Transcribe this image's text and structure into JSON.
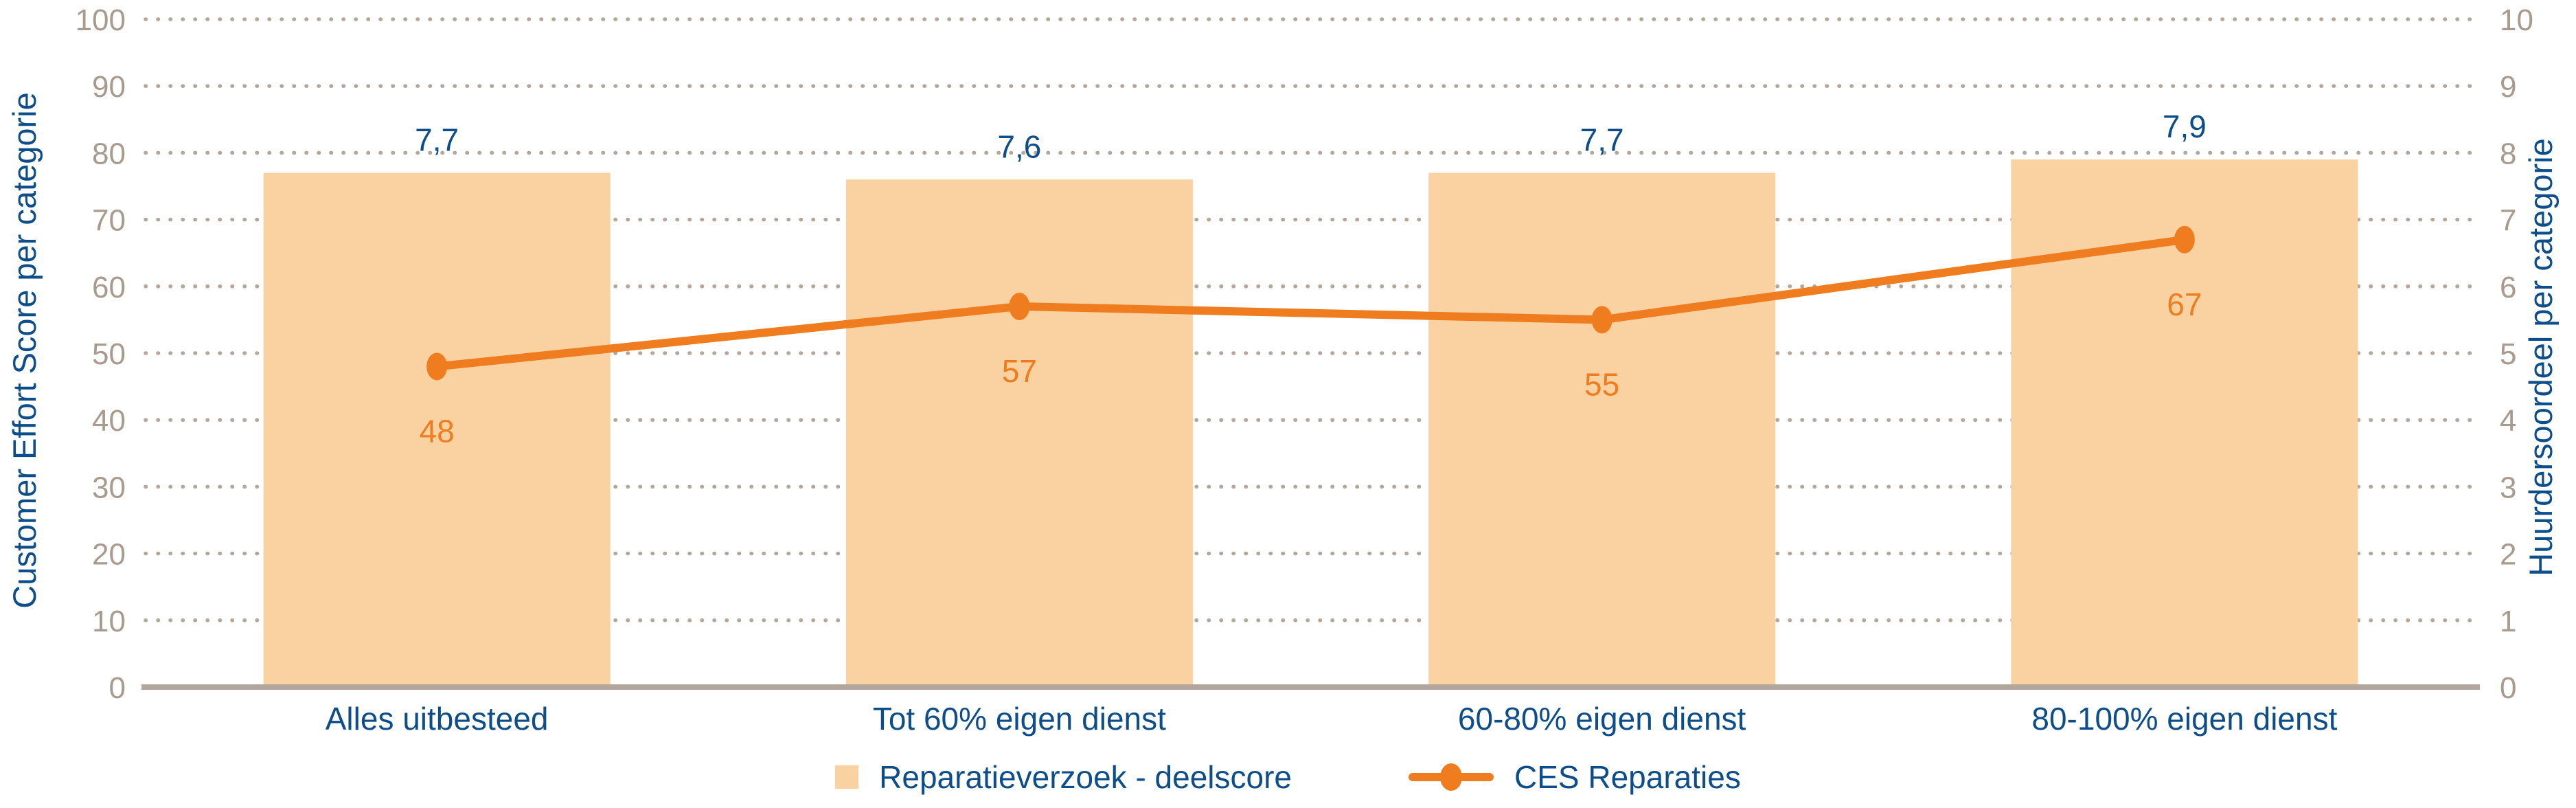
{
  "chart_data": {
    "type": "bar",
    "subtype": "combo-bar-line",
    "categories": [
      "Alles uitbesteed",
      "Tot 60% eigen dienst",
      "60-80% eigen dienst",
      "80-100% eigen dienst"
    ],
    "series": [
      {
        "name": "Reparatieverzoek - deelscore",
        "type": "bar",
        "axis": "right",
        "values": [
          7.7,
          7.6,
          7.7,
          7.9
        ],
        "value_labels": [
          "7,7",
          "7,6",
          "7,7",
          "7,9"
        ],
        "color": "#fad1a1"
      },
      {
        "name": "CES Reparaties",
        "type": "line",
        "axis": "left",
        "values": [
          48,
          57,
          55,
          67
        ],
        "value_labels": [
          "48",
          "57",
          "55",
          "67"
        ],
        "color": "#ef7d20"
      }
    ],
    "left_axis": {
      "title": "Customer Effort Score per categorie",
      "min": 0,
      "max": 100,
      "step": 10,
      "ticks": [
        "0",
        "10",
        "20",
        "30",
        "40",
        "50",
        "60",
        "70",
        "80",
        "90",
        "100"
      ]
    },
    "right_axis": {
      "title": "Huurdersoordeel per categorie",
      "min": 0,
      "max": 10,
      "step": 1,
      "ticks": [
        "0",
        "1",
        "2",
        "3",
        "4",
        "5",
        "6",
        "7",
        "8",
        "9",
        "10"
      ]
    },
    "grid": "horizontal-dotted",
    "legend_position": "bottom-center",
    "colors": {
      "bar_fill": "#fad1a1",
      "line": "#ef7d20",
      "text_blue": "#0d4e8a",
      "tick_label": "#a89b8e",
      "gridline": "#b3a79b",
      "axis_line": "#b3a69a",
      "background": "#ffffff"
    }
  }
}
